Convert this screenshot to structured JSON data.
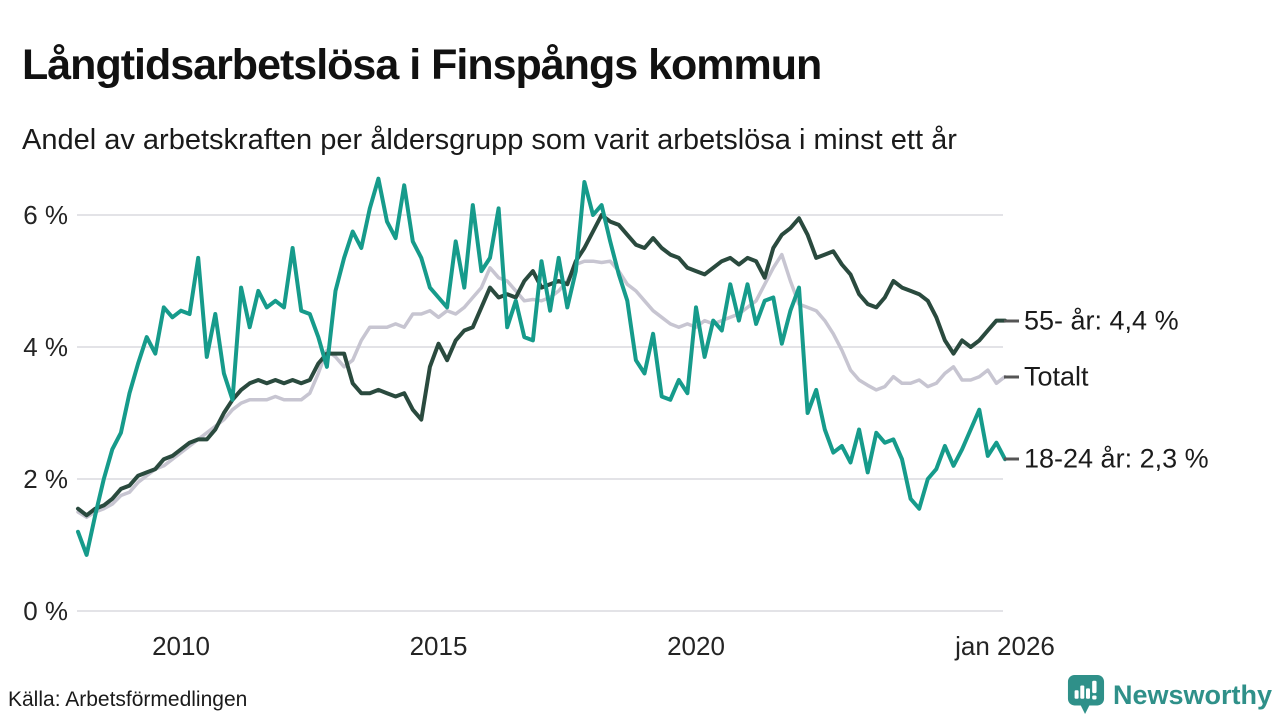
{
  "header": {
    "title": "Långtidsarbetslösa i Finspångs kommun",
    "subtitle": "Andel av arbetskraften per åldersgrupp som varit arbetslösa i minst ett år"
  },
  "theme": {
    "background": "#ffffff",
    "grid_color": "#e3e3e7",
    "axis_text_color": "#242424",
    "annotation_dash_color": "#555555",
    "brand_teal": "#2f9089"
  },
  "chart_data": {
    "type": "line",
    "title": "Långtidsarbetslösa i Finspångs kommun",
    "subtitle": "Andel av arbetskraften per åldersgrupp som varit arbetslösa i minst ett år",
    "x_unit": "time, monthly samples (every 2 months) from Jan 2008 to Jan 2026",
    "ylabel": "Andel av arbetskraften (%)",
    "ylim": [
      0,
      6.9
    ],
    "grid": true,
    "legend_position": "right-end-labels",
    "y_ticks": [
      {
        "label": "6 %",
        "value": 6
      },
      {
        "label": "4 %",
        "value": 4
      },
      {
        "label": "2 %",
        "value": 2
      },
      {
        "label": "0 %",
        "value": 0
      }
    ],
    "x_ticks": [
      {
        "label": "2010",
        "index": 12
      },
      {
        "label": "2015",
        "index": 42
      },
      {
        "label": "2020",
        "index": 72
      },
      {
        "label": "jan 2026",
        "index": 108
      }
    ],
    "series": [
      {
        "name": "Totalt",
        "end_label": "Totalt",
        "color": "#c7c5d1",
        "stroke_width": 3.5,
        "values": [
          1.5,
          1.42,
          1.5,
          1.55,
          1.62,
          1.75,
          1.8,
          1.95,
          2.05,
          2.15,
          2.2,
          2.3,
          2.4,
          2.5,
          2.6,
          2.7,
          2.8,
          2.9,
          3.05,
          3.15,
          3.2,
          3.2,
          3.2,
          3.25,
          3.2,
          3.2,
          3.2,
          3.3,
          3.6,
          3.95,
          3.85,
          3.7,
          3.8,
          4.1,
          4.3,
          4.3,
          4.3,
          4.35,
          4.3,
          4.5,
          4.5,
          4.55,
          4.45,
          4.55,
          4.5,
          4.6,
          4.75,
          4.9,
          5.2,
          5.05,
          5.0,
          4.85,
          4.7,
          4.72,
          4.7,
          4.75,
          4.85,
          5.0,
          5.25,
          5.3,
          5.3,
          5.28,
          5.3,
          5.15,
          4.95,
          4.85,
          4.7,
          4.55,
          4.45,
          4.35,
          4.3,
          4.35,
          4.3,
          4.4,
          4.35,
          4.4,
          4.45,
          4.5,
          4.6,
          4.7,
          4.95,
          5.2,
          5.4,
          5.0,
          4.65,
          4.6,
          4.55,
          4.4,
          4.2,
          3.95,
          3.65,
          3.5,
          3.42,
          3.35,
          3.4,
          3.55,
          3.45,
          3.45,
          3.5,
          3.4,
          3.45,
          3.6,
          3.7,
          3.5,
          3.5,
          3.55,
          3.65,
          3.45,
          3.55
        ]
      },
      {
        "name": "55- år",
        "end_label": "55- år: 4,4 %",
        "end_value_text": "4,4 %",
        "color": "#2a4a3e",
        "stroke_width": 4,
        "values": [
          1.55,
          1.45,
          1.55,
          1.6,
          1.7,
          1.85,
          1.9,
          2.05,
          2.1,
          2.15,
          2.3,
          2.35,
          2.45,
          2.55,
          2.6,
          2.6,
          2.75,
          3.0,
          3.2,
          3.35,
          3.45,
          3.5,
          3.45,
          3.5,
          3.45,
          3.5,
          3.45,
          3.5,
          3.75,
          3.9,
          3.9,
          3.9,
          3.45,
          3.3,
          3.3,
          3.35,
          3.3,
          3.25,
          3.3,
          3.05,
          2.9,
          3.7,
          4.05,
          3.8,
          4.1,
          4.25,
          4.3,
          4.6,
          4.9,
          4.75,
          4.8,
          4.75,
          5.0,
          5.15,
          4.9,
          4.95,
          5.0,
          4.95,
          5.3,
          5.5,
          5.75,
          6.0,
          5.9,
          5.85,
          5.7,
          5.55,
          5.5,
          5.65,
          5.5,
          5.4,
          5.35,
          5.2,
          5.15,
          5.1,
          5.2,
          5.3,
          5.35,
          5.25,
          5.35,
          5.3,
          5.05,
          5.5,
          5.7,
          5.8,
          5.95,
          5.7,
          5.35,
          5.4,
          5.45,
          5.25,
          5.1,
          4.8,
          4.65,
          4.6,
          4.75,
          5.0,
          4.9,
          4.85,
          4.8,
          4.7,
          4.45,
          4.1,
          3.9,
          4.1,
          4.0,
          4.1,
          4.25,
          4.4,
          4.4
        ]
      },
      {
        "name": "18-24 år",
        "end_label": "18-24 år: 2,3 %",
        "end_value_text": "2,3 %",
        "color": "#169b8b",
        "stroke_width": 4,
        "values": [
          1.2,
          0.85,
          1.45,
          2.0,
          2.45,
          2.7,
          3.3,
          3.75,
          4.15,
          3.9,
          4.6,
          4.45,
          4.55,
          4.5,
          5.35,
          3.85,
          4.5,
          3.6,
          3.2,
          4.9,
          4.3,
          4.85,
          4.6,
          4.7,
          4.6,
          5.5,
          4.55,
          4.5,
          4.15,
          3.7,
          4.85,
          5.35,
          5.75,
          5.5,
          6.1,
          6.55,
          5.9,
          5.65,
          6.45,
          5.6,
          5.35,
          4.9,
          4.75,
          4.6,
          5.6,
          4.9,
          6.15,
          5.15,
          5.35,
          6.1,
          4.3,
          4.7,
          4.15,
          4.1,
          5.3,
          4.55,
          5.35,
          4.6,
          5.15,
          6.5,
          6.0,
          6.15,
          5.6,
          5.1,
          4.7,
          3.8,
          3.6,
          4.2,
          3.25,
          3.2,
          3.5,
          3.3,
          4.6,
          3.85,
          4.4,
          4.25,
          4.95,
          4.4,
          4.95,
          4.35,
          4.7,
          4.75,
          4.05,
          4.55,
          4.9,
          3.0,
          3.35,
          2.75,
          2.4,
          2.5,
          2.25,
          2.75,
          2.1,
          2.7,
          2.55,
          2.6,
          2.3,
          1.7,
          1.55,
          2.0,
          2.15,
          2.5,
          2.2,
          2.45,
          2.75,
          3.05,
          2.35,
          2.55,
          2.3
        ]
      }
    ]
  },
  "footer": {
    "source": "Källa: Arbetsförmedlingen",
    "brand": "Newsworthy"
  }
}
